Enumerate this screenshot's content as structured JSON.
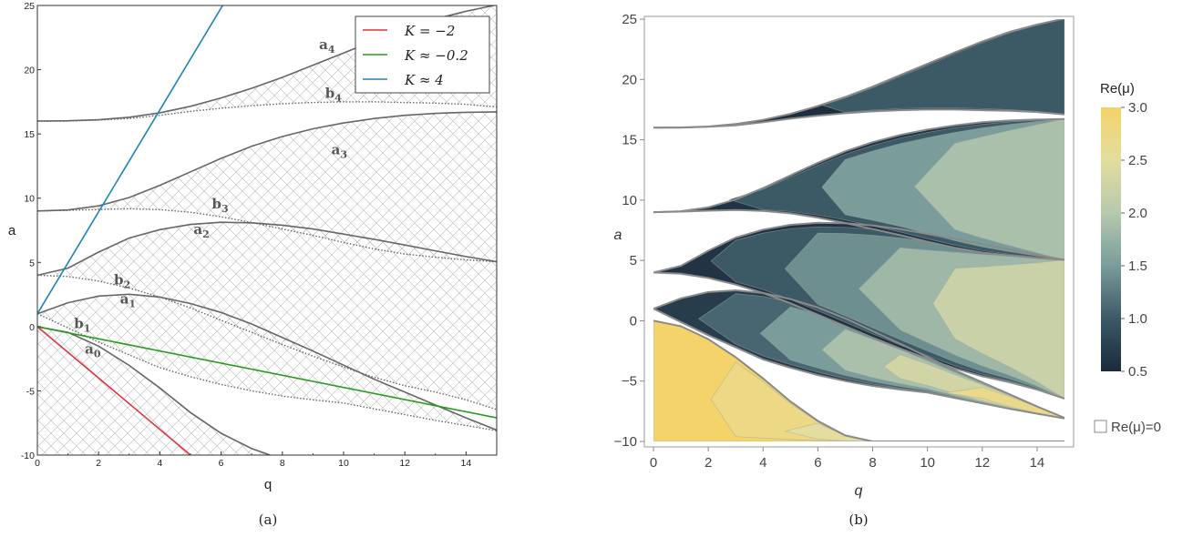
{
  "chart_data": [
    {
      "type": "line",
      "panel_caption": "(a)",
      "xlabel": "q",
      "ylabel": "a",
      "xlim": [
        0,
        15
      ],
      "ylim": [
        -10,
        25
      ],
      "xticks": [
        "0",
        "2",
        "4",
        "6",
        "8",
        "10",
        "12",
        "14"
      ],
      "yticks": [
        "-10",
        "-5",
        "0",
        "5",
        "10",
        "15",
        "20",
        "25"
      ],
      "grid": false,
      "legend_position": "top-right",
      "legend": [
        {
          "label": "K = −2",
          "color": "#e0313d"
        },
        {
          "label": "K ≈ −0.2",
          "color": "#2a9a1e"
        },
        {
          "label": "K ≈ 4",
          "color": "#1c84b5"
        }
      ],
      "series": [
        {
          "name": "K = −2",
          "color": "#e0313d",
          "x": [
            0,
            5
          ],
          "y": [
            0,
            -10
          ]
        },
        {
          "name": "K ≈ −0.2",
          "color": "#2a9a1e",
          "x": [
            0,
            15
          ],
          "y": [
            0,
            -7.1
          ]
        },
        {
          "name": "K ≈ 4",
          "color": "#1c84b5",
          "x": [
            0,
            6.05
          ],
          "y": [
            1,
            25
          ]
        }
      ],
      "curves": [
        {
          "label": "a",
          "sub": "0",
          "style": "solid",
          "x": [
            0,
            1,
            2,
            3,
            4,
            5,
            6,
            7,
            7.6
          ],
          "y": [
            0,
            -0.45,
            -1.52,
            -3.02,
            -4.78,
            -6.69,
            -8.3,
            -9.5,
            -10
          ]
        },
        {
          "label": "b",
          "sub": "1",
          "style": "dotted",
          "x": [
            0,
            0.5,
            1,
            1.5,
            2,
            3,
            4,
            5,
            6,
            7,
            8,
            9,
            10,
            11,
            12,
            13,
            14,
            15
          ],
          "y": [
            1,
            0.45,
            -0.1,
            -0.65,
            -1.2,
            -2.2,
            -3.2,
            -3.9,
            -4.5,
            -5,
            -5.4,
            -5.7,
            -5.95,
            -6.4,
            -6.85,
            -7.3,
            -7.7,
            -8.1
          ]
        },
        {
          "label": "a",
          "sub": "1",
          "style": "solid",
          "x": [
            0,
            1,
            2,
            3,
            4,
            5,
            6,
            7,
            8,
            9,
            10,
            11,
            12,
            13,
            14,
            15
          ],
          "y": [
            1,
            1.86,
            2.38,
            2.52,
            2.3,
            1.8,
            1.1,
            0.2,
            -0.85,
            -1.9,
            -3,
            -4.1,
            -5.1,
            -6.1,
            -7.1,
            -8.05
          ]
        },
        {
          "label": "b",
          "sub": "2",
          "style": "dotted",
          "x": [
            0,
            1,
            2,
            3,
            4,
            5,
            6,
            7,
            8,
            9,
            10,
            11,
            12,
            13,
            14,
            15
          ],
          "y": [
            4,
            3.9,
            3.55,
            3,
            2.3,
            1.45,
            0.5,
            -0.45,
            -1.4,
            -2.3,
            -3.15,
            -3.95,
            -4.6,
            -5.1,
            -5.7,
            -6.45
          ]
        },
        {
          "label": "a",
          "sub": "2",
          "style": "solid",
          "x": [
            0,
            1,
            2,
            3,
            4,
            5,
            6,
            7,
            8,
            9,
            10,
            11,
            12,
            13,
            14,
            15
          ],
          "y": [
            4,
            4.55,
            5.8,
            6.9,
            7.55,
            7.95,
            8.12,
            8.08,
            7.9,
            7.6,
            7.2,
            6.8,
            6.35,
            5.9,
            5.45,
            5.05
          ]
        },
        {
          "label": "b",
          "sub": "3",
          "style": "dotted",
          "x": [
            0,
            1,
            2,
            3,
            4,
            5,
            6,
            7,
            8,
            9,
            10,
            11,
            12,
            13,
            14,
            15
          ],
          "y": [
            9,
            9.05,
            9.12,
            9.18,
            9.1,
            8.9,
            8.55,
            8.1,
            7.6,
            7.1,
            6.55,
            6.05,
            5.65,
            5.4,
            5.2,
            5.05
          ]
        },
        {
          "label": "a",
          "sub": "3",
          "style": "solid",
          "x": [
            0,
            1,
            2,
            3,
            4,
            5,
            6,
            7,
            8,
            9,
            10,
            11,
            12,
            13,
            14,
            15
          ],
          "y": [
            9,
            9.08,
            9.4,
            10.05,
            11.0,
            12.05,
            13.1,
            14.05,
            14.8,
            15.4,
            15.85,
            16.2,
            16.45,
            16.6,
            16.68,
            16.72
          ]
        },
        {
          "label": "b",
          "sub": "4",
          "style": "dotted",
          "x": [
            0,
            1,
            2,
            3,
            4,
            5,
            6,
            7,
            8,
            9,
            10,
            11,
            12,
            13,
            14,
            15
          ],
          "y": [
            16,
            16.0,
            16.08,
            16.2,
            16.45,
            16.75,
            17.0,
            17.2,
            17.35,
            17.45,
            17.5,
            17.5,
            17.45,
            17.4,
            17.3,
            17.1
          ]
        },
        {
          "label": "a",
          "sub": "4",
          "style": "solid",
          "x": [
            0,
            1,
            2,
            3,
            4,
            5,
            6,
            7,
            8,
            9,
            10,
            11,
            12,
            13,
            14,
            15
          ],
          "y": [
            16,
            16.02,
            16.1,
            16.3,
            16.65,
            17.15,
            17.8,
            18.55,
            19.4,
            20.35,
            21.3,
            22.25,
            23.15,
            23.95,
            24.55,
            25.05
          ]
        }
      ]
    },
    {
      "type": "heatmap",
      "panel_caption": "(b)",
      "xlabel": "q",
      "ylabel": "a",
      "xlim": [
        0,
        15
      ],
      "ylim": [
        -10,
        25
      ],
      "xticks": [
        "0",
        "2",
        "4",
        "6",
        "8",
        "10",
        "12",
        "14"
      ],
      "yticks": [
        "−10",
        "−5",
        "0",
        "5",
        "10",
        "15",
        "20",
        "25"
      ],
      "colorbar": {
        "title": "Re(μ)",
        "ticks": [
          "3.0",
          "2.5",
          "2.0",
          "1.5",
          "1.0",
          "0.5"
        ],
        "range": [
          0.5,
          3.0
        ],
        "colors": [
          "#1a2a3b",
          "#3c5966",
          "#7a9c9b",
          "#b6c9ae",
          "#e3dd9f",
          "#f4d36a"
        ]
      },
      "legend_zero": "Re(μ)=0",
      "bands": [
        {
          "name": "band-0",
          "lower_a": [
            -10,
            -10,
            -10,
            -10,
            -10,
            -10,
            -10,
            -10,
            -10,
            -10,
            -10,
            -10,
            -10,
            -10,
            -10,
            -10
          ],
          "upper_a": [
            0,
            -0.45,
            -1.52,
            -3.02,
            -4.78,
            -6.69,
            -8.3,
            -9.5,
            -10,
            -10,
            -10,
            -10,
            -10,
            -10,
            -10,
            -10
          ],
          "re_mu": [
            3.0,
            2.75,
            2.5,
            2.25,
            2.0
          ]
        },
        {
          "name": "band-1",
          "lower_a": [
            1,
            -0.1,
            -1.2,
            -2.2,
            -3.2,
            -3.9,
            -4.5,
            -5,
            -5.4,
            -5.7,
            -5.95,
            -6.4,
            -6.85,
            -7.3,
            -7.7,
            -8.1
          ],
          "upper_a": [
            1,
            1.86,
            2.38,
            2.52,
            2.3,
            1.8,
            1.1,
            0.2,
            -0.85,
            -1.9,
            -3,
            -4.1,
            -5.1,
            -6.1,
            -7.1,
            -8.05
          ],
          "re_mu": [
            0.7,
            1.1,
            1.5,
            1.9,
            2.3,
            2.7
          ]
        },
        {
          "name": "band-2",
          "lower_a": [
            4,
            3.9,
            3.55,
            3,
            2.3,
            1.45,
            0.5,
            -0.45,
            -1.4,
            -2.3,
            -3.15,
            -3.95,
            -4.6,
            -5.1,
            -5.7,
            -6.45
          ],
          "upper_a": [
            4,
            4.55,
            5.8,
            6.9,
            7.55,
            7.95,
            8.12,
            8.08,
            7.9,
            7.6,
            7.2,
            6.8,
            6.35,
            5.9,
            5.45,
            5.05
          ],
          "re_mu": [
            0.6,
            1.0,
            1.4,
            1.8,
            2.2
          ]
        },
        {
          "name": "band-3",
          "lower_a": [
            9,
            9.05,
            9.12,
            9.18,
            9.1,
            8.9,
            8.55,
            8.1,
            7.6,
            7.1,
            6.55,
            6.05,
            5.65,
            5.4,
            5.2,
            5.05
          ],
          "upper_a": [
            9,
            9.08,
            9.4,
            10.05,
            11.0,
            12.05,
            13.1,
            14.05,
            14.8,
            15.4,
            15.85,
            16.2,
            16.45,
            16.6,
            16.68,
            16.72
          ],
          "re_mu": [
            0.6,
            1.0,
            1.5,
            1.9
          ]
        },
        {
          "name": "band-4",
          "lower_a": [
            16,
            16.0,
            16.08,
            16.2,
            16.45,
            16.75,
            17.0,
            17.2,
            17.35,
            17.45,
            17.5,
            17.5,
            17.45,
            17.4,
            17.3,
            17.1
          ],
          "upper_a": [
            16,
            16.02,
            16.1,
            16.3,
            16.65,
            17.15,
            17.8,
            18.55,
            19.4,
            20.35,
            21.3,
            22.25,
            23.15,
            23.95,
            24.55,
            25.05
          ],
          "re_mu": [
            0.55,
            1.0
          ]
        }
      ]
    }
  ]
}
